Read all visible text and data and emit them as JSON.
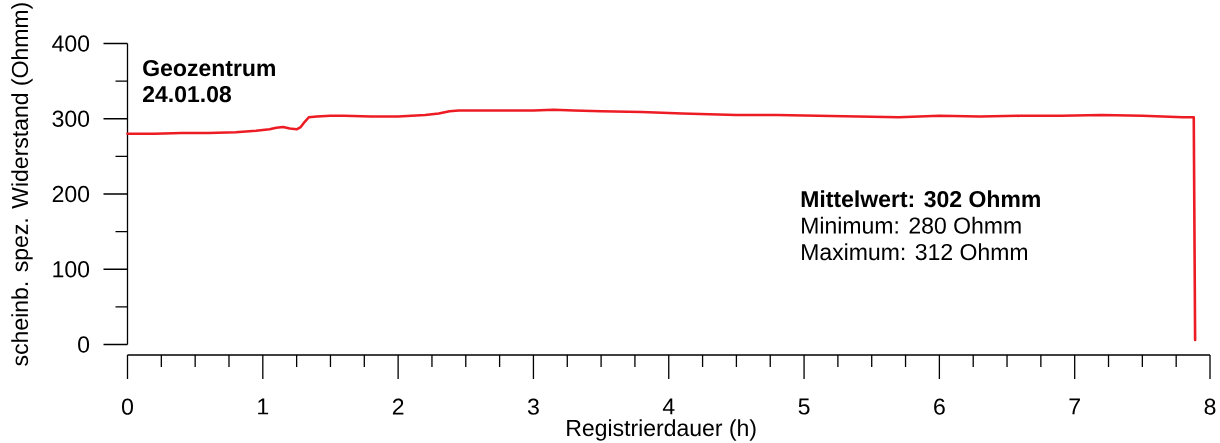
{
  "chart_data": {
    "type": "line",
    "title": "Geozentrum",
    "subtitle": "24.01.08",
    "xlabel": "Registrierdauer (h)",
    "ylabel": "scheinb. spez. Widerstand (Ohmm)",
    "annotations": [
      "Mittelwert: 302 Ohmm",
      "Minimum: 280 Ohmm",
      "Maximum: 312 Ohmm"
    ],
    "x": [
      0,
      0.2,
      0.4,
      0.6,
      0.8,
      0.95,
      1.05,
      1.1,
      1.15,
      1.2,
      1.25,
      1.28,
      1.31,
      1.34,
      1.4,
      1.5,
      1.6,
      1.8,
      2.0,
      2.1,
      2.2,
      2.3,
      2.38,
      2.45,
      2.6,
      2.8,
      3.0,
      3.15,
      3.3,
      3.5,
      3.8,
      4.1,
      4.3,
      4.5,
      4.8,
      5.1,
      5.4,
      5.7,
      6.0,
      6.3,
      6.6,
      6.9,
      7.2,
      7.5,
      7.8,
      7.88,
      7.89
    ],
    "series": [
      {
        "color": "#ed1c24",
        "values": [
          280,
          280,
          281,
          281,
          282,
          284,
          286,
          288,
          289,
          287,
          286,
          289,
          296,
          302,
          303,
          304,
          304,
          303,
          303,
          304,
          305,
          307,
          310,
          311,
          311,
          311,
          311,
          312,
          311,
          310,
          309,
          307,
          306,
          305,
          305,
          304,
          303,
          302,
          304,
          303,
          304,
          304,
          305,
          304,
          302,
          302,
          6
        ]
      }
    ],
    "xlim": [
      0,
      8
    ],
    "ylim": [
      0,
      400
    ],
    "xticks": [
      0,
      {
        "value": 0.25,
        "label": null
      },
      {
        "value": 0.5,
        "label": null
      },
      {
        "value": 0.75,
        "label": null
      },
      1,
      {
        "value": 1.25,
        "label": null
      },
      {
        "value": 1.5,
        "label": null
      },
      {
        "value": 1.75,
        "label": null
      },
      2,
      {
        "value": 2.25,
        "label": null
      },
      {
        "value": 2.5,
        "label": null
      },
      {
        "value": 2.75,
        "label": null
      },
      3,
      {
        "value": 3.25,
        "label": null
      },
      {
        "value": 3.5,
        "label": null
      },
      {
        "value": 3.75,
        "label": null
      },
      4,
      {
        "value": 4.25,
        "label": null
      },
      {
        "value": 4.5,
        "label": null
      },
      {
        "value": 4.75,
        "label": null
      },
      5,
      {
        "value": 5.25,
        "label": null
      },
      {
        "value": 5.5,
        "label": null
      },
      {
        "value": 5.75,
        "label": null
      },
      6,
      {
        "value": 6.25,
        "label": null
      },
      {
        "value": 6.5,
        "label": null
      },
      {
        "value": 6.75,
        "label": null
      },
      7,
      {
        "value": 7.25,
        "label": null
      },
      {
        "value": 7.5,
        "label": null
      },
      {
        "value": 7.75,
        "label": null
      },
      8
    ],
    "yticks": [
      0,
      {
        "value": 50,
        "label": null
      },
      100,
      {
        "value": 150,
        "label": null
      },
      200,
      {
        "value": 250,
        "label": null
      },
      300,
      {
        "value": 350,
        "label": null
      },
      400
    ],
    "marker": "none",
    "line_style": "solid"
  }
}
